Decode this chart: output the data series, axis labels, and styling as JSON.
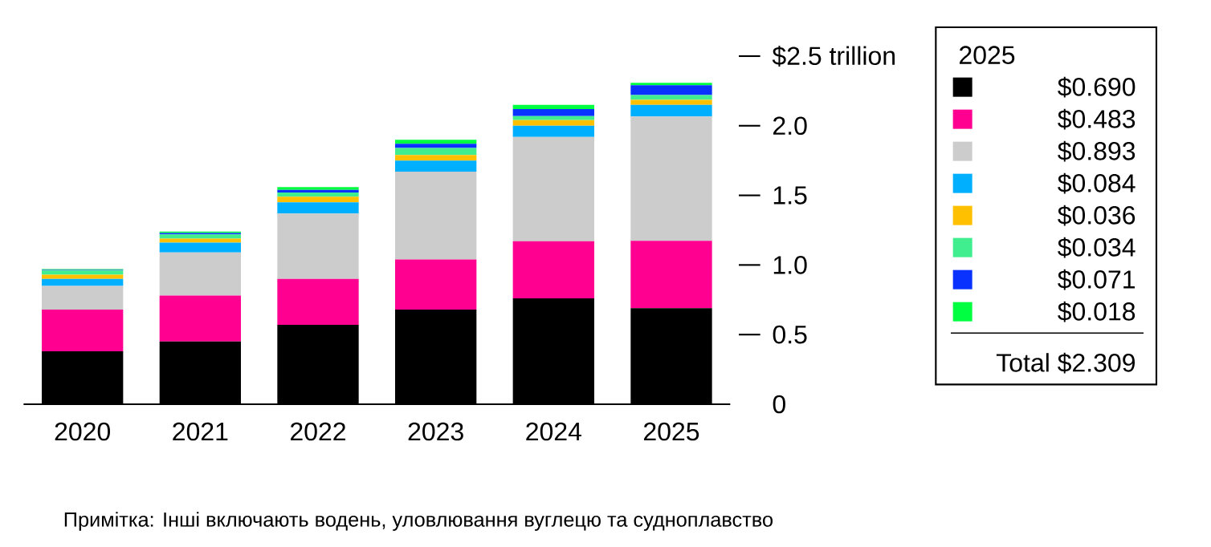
{
  "chart_data": {
    "type": "bar",
    "stacked": true,
    "categories": [
      "2020",
      "2021",
      "2022",
      "2023",
      "2024",
      "2025"
    ],
    "series": [
      {
        "color": "#000000",
        "values": [
          0.38,
          0.45,
          0.57,
          0.68,
          0.76,
          0.69
        ]
      },
      {
        "color": "#ff0090",
        "values": [
          0.3,
          0.33,
          0.33,
          0.36,
          0.41,
          0.483
        ]
      },
      {
        "color": "#cccccc",
        "values": [
          0.17,
          0.31,
          0.47,
          0.63,
          0.75,
          0.893
        ]
      },
      {
        "color": "#00b0ff",
        "values": [
          0.05,
          0.07,
          0.08,
          0.08,
          0.08,
          0.084
        ]
      },
      {
        "color": "#ffc000",
        "values": [
          0.03,
          0.03,
          0.04,
          0.04,
          0.04,
          0.036
        ]
      },
      {
        "color": "#40ee90",
        "values": [
          0.03,
          0.03,
          0.03,
          0.05,
          0.03,
          0.034
        ]
      },
      {
        "color": "#0a32ff",
        "values": [
          0.005,
          0.01,
          0.02,
          0.03,
          0.05,
          0.071
        ]
      },
      {
        "color": "#00ff40",
        "values": [
          0.005,
          0.01,
          0.02,
          0.03,
          0.03,
          0.018
        ]
      }
    ],
    "legend_title": "2025",
    "ylim": [
      0,
      2.5
    ],
    "yticks": [
      0,
      0.5,
      {
        "value": 1,
        "label": "1.0"
      },
      1.5,
      {
        "value": 2,
        "label": "2.0"
      },
      {
        "value": 2.5,
        "label": "$2.5 trillion"
      }
    ],
    "annotations": [
      "$0.690",
      "$0.483",
      "$0.893",
      "$0.084",
      "$0.036",
      "$0.034",
      "$0.071",
      "$0.018",
      "Total $2.309",
      "Примітка: Інші включають водень, уловлювання вуглецю та судноплавство"
    ]
  }
}
